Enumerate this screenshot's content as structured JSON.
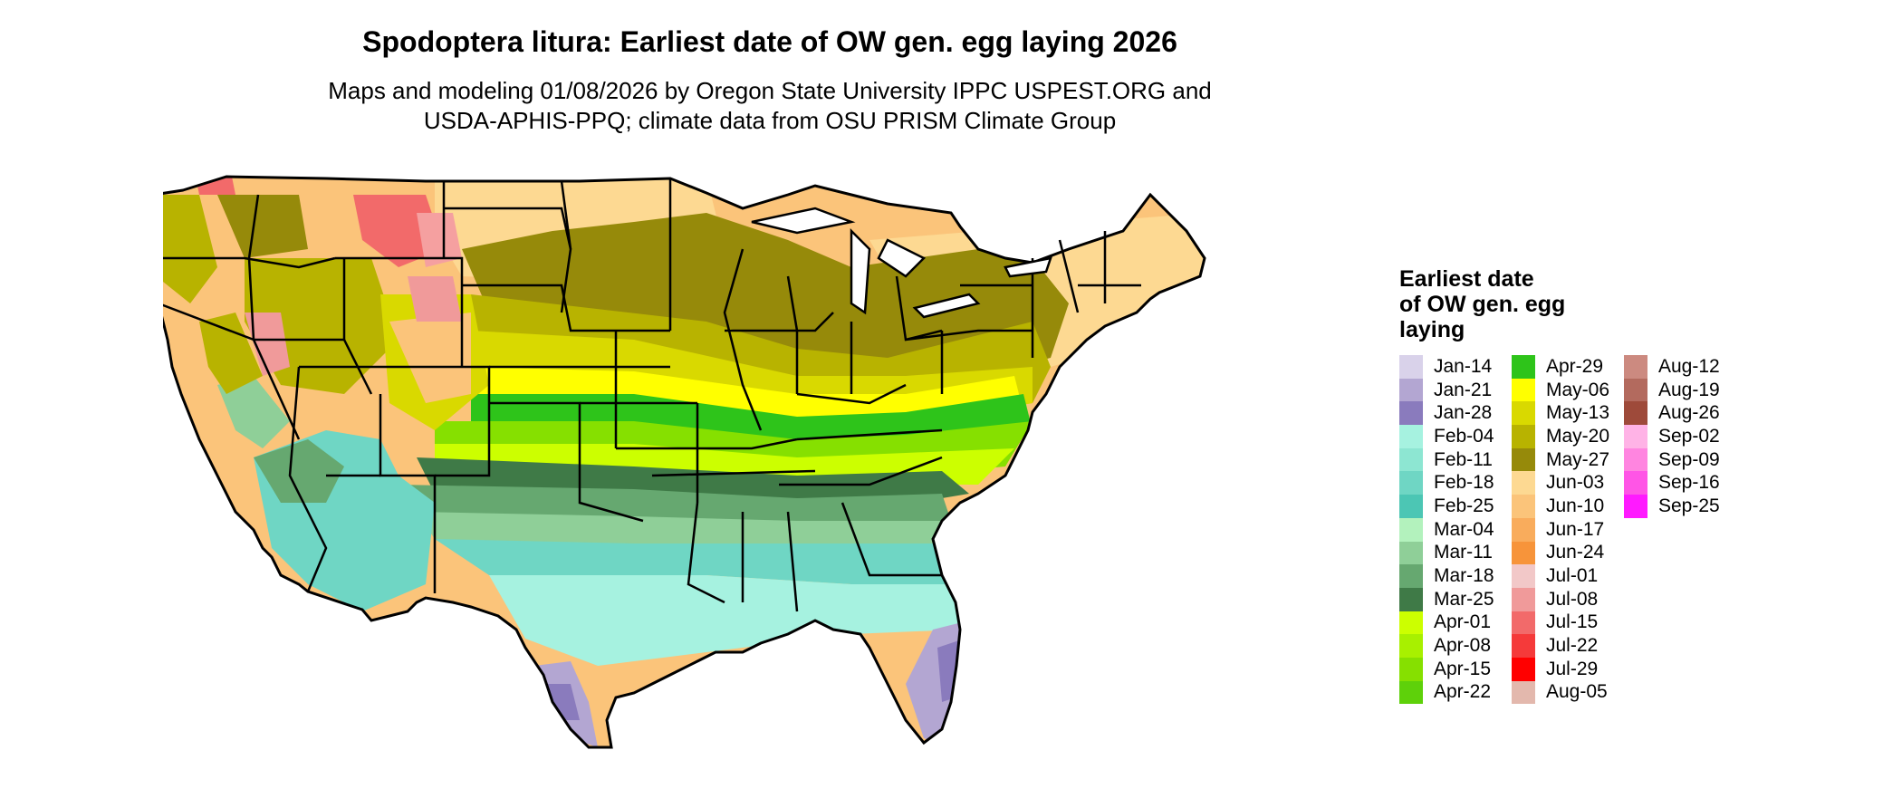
{
  "title": "Spodoptera litura: Earliest date of OW gen. egg laying 2026",
  "subtitle": [
    "Maps and modeling 01/08/2026 by Oregon State University IPPC USPEST.ORG and",
    "USDA-APHIS-PPQ; climate data from OSU PRISM Climate Group"
  ],
  "legend": {
    "title": [
      "Earliest date",
      "of OW gen. egg",
      "laying"
    ],
    "columns": [
      [
        {
          "label": "Jan-14",
          "color": "#d9d2ea"
        },
        {
          "label": "Jan-21",
          "color": "#b3a6d2"
        },
        {
          "label": "Jan-28",
          "color": "#8a7bbd"
        },
        {
          "label": "Feb-04",
          "color": "#a6f2e0"
        },
        {
          "label": "Feb-11",
          "color": "#8de6d2"
        },
        {
          "label": "Feb-18",
          "color": "#6fd6c4"
        },
        {
          "label": "Feb-25",
          "color": "#4cc6b4"
        },
        {
          "label": "Mar-04",
          "color": "#b3f2bd"
        },
        {
          "label": "Mar-11",
          "color": "#8fcf98"
        },
        {
          "label": "Mar-18",
          "color": "#66a870"
        },
        {
          "label": "Mar-25",
          "color": "#3f7a47"
        },
        {
          "label": "Apr-01",
          "color": "#ccff00"
        },
        {
          "label": "Apr-08",
          "color": "#a8f000"
        },
        {
          "label": "Apr-15",
          "color": "#86e000"
        },
        {
          "label": "Apr-22",
          "color": "#5ed10a"
        }
      ],
      [
        {
          "label": "Apr-29",
          "color": "#2ec41a"
        },
        {
          "label": "May-06",
          "color": "#ffff00"
        },
        {
          "label": "May-13",
          "color": "#d9d900"
        },
        {
          "label": "May-20",
          "color": "#b8b300"
        },
        {
          "label": "May-27",
          "color": "#968a0a"
        },
        {
          "label": "Jun-03",
          "color": "#fdd992"
        },
        {
          "label": "Jun-10",
          "color": "#fbc47a"
        },
        {
          "label": "Jun-17",
          "color": "#f9ac5c"
        },
        {
          "label": "Jun-24",
          "color": "#f7943a"
        },
        {
          "label": "Jul-01",
          "color": "#f2c8c8"
        },
        {
          "label": "Jul-08",
          "color": "#f09a9a"
        },
        {
          "label": "Jul-15",
          "color": "#f26a6a"
        },
        {
          "label": "Jul-22",
          "color": "#f53a3a"
        },
        {
          "label": "Jul-29",
          "color": "#ff0000"
        },
        {
          "label": "Aug-05",
          "color": "#e3b8ad"
        }
      ],
      [
        {
          "label": "Aug-12",
          "color": "#cc8a80"
        },
        {
          "label": "Aug-19",
          "color": "#b36a5e"
        },
        {
          "label": "Aug-26",
          "color": "#9e4a3a"
        },
        {
          "label": "Sep-02",
          "color": "#ffb3e6"
        },
        {
          "label": "Sep-09",
          "color": "#ff85e0"
        },
        {
          "label": "Sep-16",
          "color": "#ff55e6"
        },
        {
          "label": "Sep-25",
          "color": "#ff1aff"
        }
      ]
    ]
  }
}
